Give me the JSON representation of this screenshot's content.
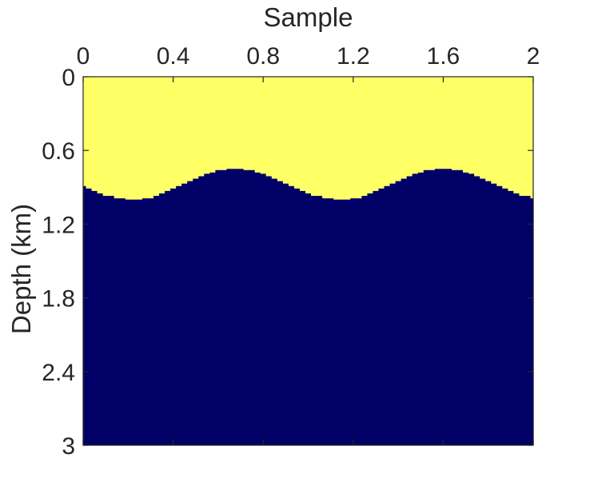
{
  "chart_data": {
    "type": "heatmap",
    "title": "",
    "xlabel": "Sample",
    "ylabel": "Depth (km)",
    "xlim": [
      0,
      2
    ],
    "ylim": [
      0,
      3
    ],
    "y_reversed": true,
    "x_axis_position": "top",
    "xticks": [
      "0",
      "0.4",
      "0.8",
      "1.2",
      "1.6",
      "2"
    ],
    "yticks": [
      "0",
      "0.6",
      "1.2",
      "1.8",
      "2.4",
      "3"
    ],
    "grid": false,
    "colors": {
      "upper_layer": "#FFFF66",
      "lower_layer": "#000066",
      "axis": "#262626"
    },
    "interface": {
      "x": [
        0.0,
        0.025,
        0.05,
        0.075,
        0.1,
        0.125,
        0.15,
        0.175,
        0.2,
        0.225,
        0.25,
        0.275,
        0.3,
        0.325,
        0.35,
        0.375,
        0.4,
        0.425,
        0.45,
        0.475,
        0.5,
        0.525,
        0.55,
        0.575,
        0.6,
        0.625,
        0.65,
        0.675,
        0.7,
        0.725,
        0.75,
        0.775,
        0.8,
        0.825,
        0.85,
        0.875,
        0.9,
        0.925,
        0.95,
        0.975,
        1.0,
        1.025,
        1.05,
        1.075,
        1.1,
        1.125,
        1.15,
        1.175,
        1.2,
        1.225,
        1.25,
        1.275,
        1.3,
        1.325,
        1.35,
        1.375,
        1.4,
        1.425,
        1.45,
        1.475,
        1.5,
        1.525,
        1.55,
        1.575,
        1.6,
        1.625,
        1.65,
        1.675,
        1.7,
        1.725,
        1.75,
        1.775,
        1.8,
        1.825,
        1.85,
        1.875,
        1.9,
        1.925,
        1.95,
        1.975,
        2.0
      ],
      "depth_km": [
        0.89,
        0.91,
        0.93,
        0.95,
        0.97,
        0.97,
        0.99,
        0.99,
        1.0,
        1.0,
        1.0,
        0.99,
        0.99,
        0.97,
        0.95,
        0.93,
        0.91,
        0.89,
        0.87,
        0.85,
        0.83,
        0.81,
        0.79,
        0.78,
        0.76,
        0.76,
        0.75,
        0.75,
        0.75,
        0.76,
        0.76,
        0.78,
        0.79,
        0.81,
        0.83,
        0.85,
        0.87,
        0.89,
        0.91,
        0.93,
        0.95,
        0.97,
        0.97,
        0.99,
        0.99,
        1.0,
        1.0,
        1.0,
        0.99,
        0.99,
        0.97,
        0.95,
        0.93,
        0.91,
        0.89,
        0.87,
        0.85,
        0.83,
        0.81,
        0.79,
        0.78,
        0.76,
        0.76,
        0.75,
        0.75,
        0.75,
        0.76,
        0.76,
        0.78,
        0.79,
        0.81,
        0.83,
        0.85,
        0.87,
        0.89,
        0.91,
        0.93,
        0.95,
        0.97,
        0.97,
        0.99
      ]
    }
  }
}
